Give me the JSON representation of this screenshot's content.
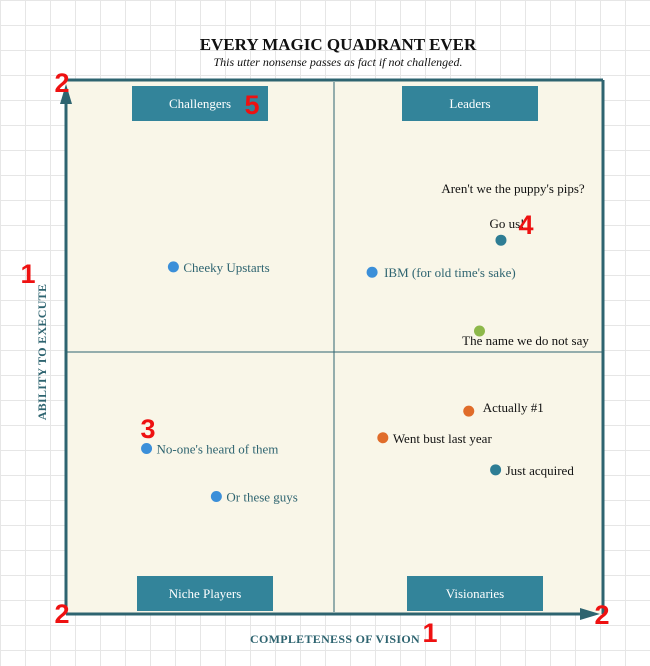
{
  "chart_data": {
    "type": "scatter",
    "title": "EVERY MAGIC QUADRANT EVER",
    "subtitle": "This utter nonsense passes as fact if not challenged.",
    "xlabel": "COMPLETENESS OF VISION",
    "ylabel": "ABILITY TO EXECUTE",
    "xlim": [
      0,
      10
    ],
    "ylim": [
      0,
      10
    ],
    "grid": false,
    "quadrants": [
      {
        "label": "Challengers",
        "position": "top-left"
      },
      {
        "label": "Leaders",
        "position": "top-right"
      },
      {
        "label": "Niche Players",
        "position": "bottom-left"
      },
      {
        "label": "Visionaries",
        "position": "bottom-right"
      }
    ],
    "points": [
      {
        "label": "Cheeky Upstarts",
        "x": 2.0,
        "y": 6.5,
        "color": "#3b8fd9",
        "label_color": "#2e6470"
      },
      {
        "label": "IBM (for old time's sake)",
        "x": 5.7,
        "y": 6.4,
        "color": "#3b8fd9",
        "label_color": "#2e6470"
      },
      {
        "label": "Go us!",
        "x": 8.1,
        "y": 7.0,
        "color": "#2e7d94",
        "label_color": "#111111"
      },
      {
        "label": "The name we do not say",
        "x": 7.7,
        "y": 5.3,
        "color": "#8db84a",
        "label_color": "#111111"
      },
      {
        "label": "Actually #1",
        "x": 7.5,
        "y": 3.8,
        "color": "#e06c2a",
        "label_color": "#111111"
      },
      {
        "label": "No-one's heard of them",
        "x": 1.5,
        "y": 3.1,
        "color": "#3b8fd9",
        "label_color": "#2e6470"
      },
      {
        "label": "Or these guys",
        "x": 2.8,
        "y": 2.2,
        "color": "#3b8fd9",
        "label_color": "#2e6470"
      },
      {
        "label": "Went bust last year",
        "x": 5.9,
        "y": 3.3,
        "color": "#e06c2a",
        "label_color": "#111111"
      },
      {
        "label": "Just acquired",
        "x": 8.0,
        "y": 2.7,
        "color": "#2e7d94",
        "label_color": "#111111"
      }
    ],
    "annotations": [
      {
        "text": "Aren't we the puppy's pips?"
      }
    ]
  },
  "markers": [
    {
      "text": "1"
    },
    {
      "text": "1"
    },
    {
      "text": "2"
    },
    {
      "text": "2"
    },
    {
      "text": "2"
    },
    {
      "text": "3"
    },
    {
      "text": "4"
    },
    {
      "text": "5"
    }
  ],
  "colors": {
    "plot_bg": "#f9f6e8",
    "frame": "#2e6470",
    "quadrant_box": "#33849a",
    "marker": "#ee1111"
  }
}
